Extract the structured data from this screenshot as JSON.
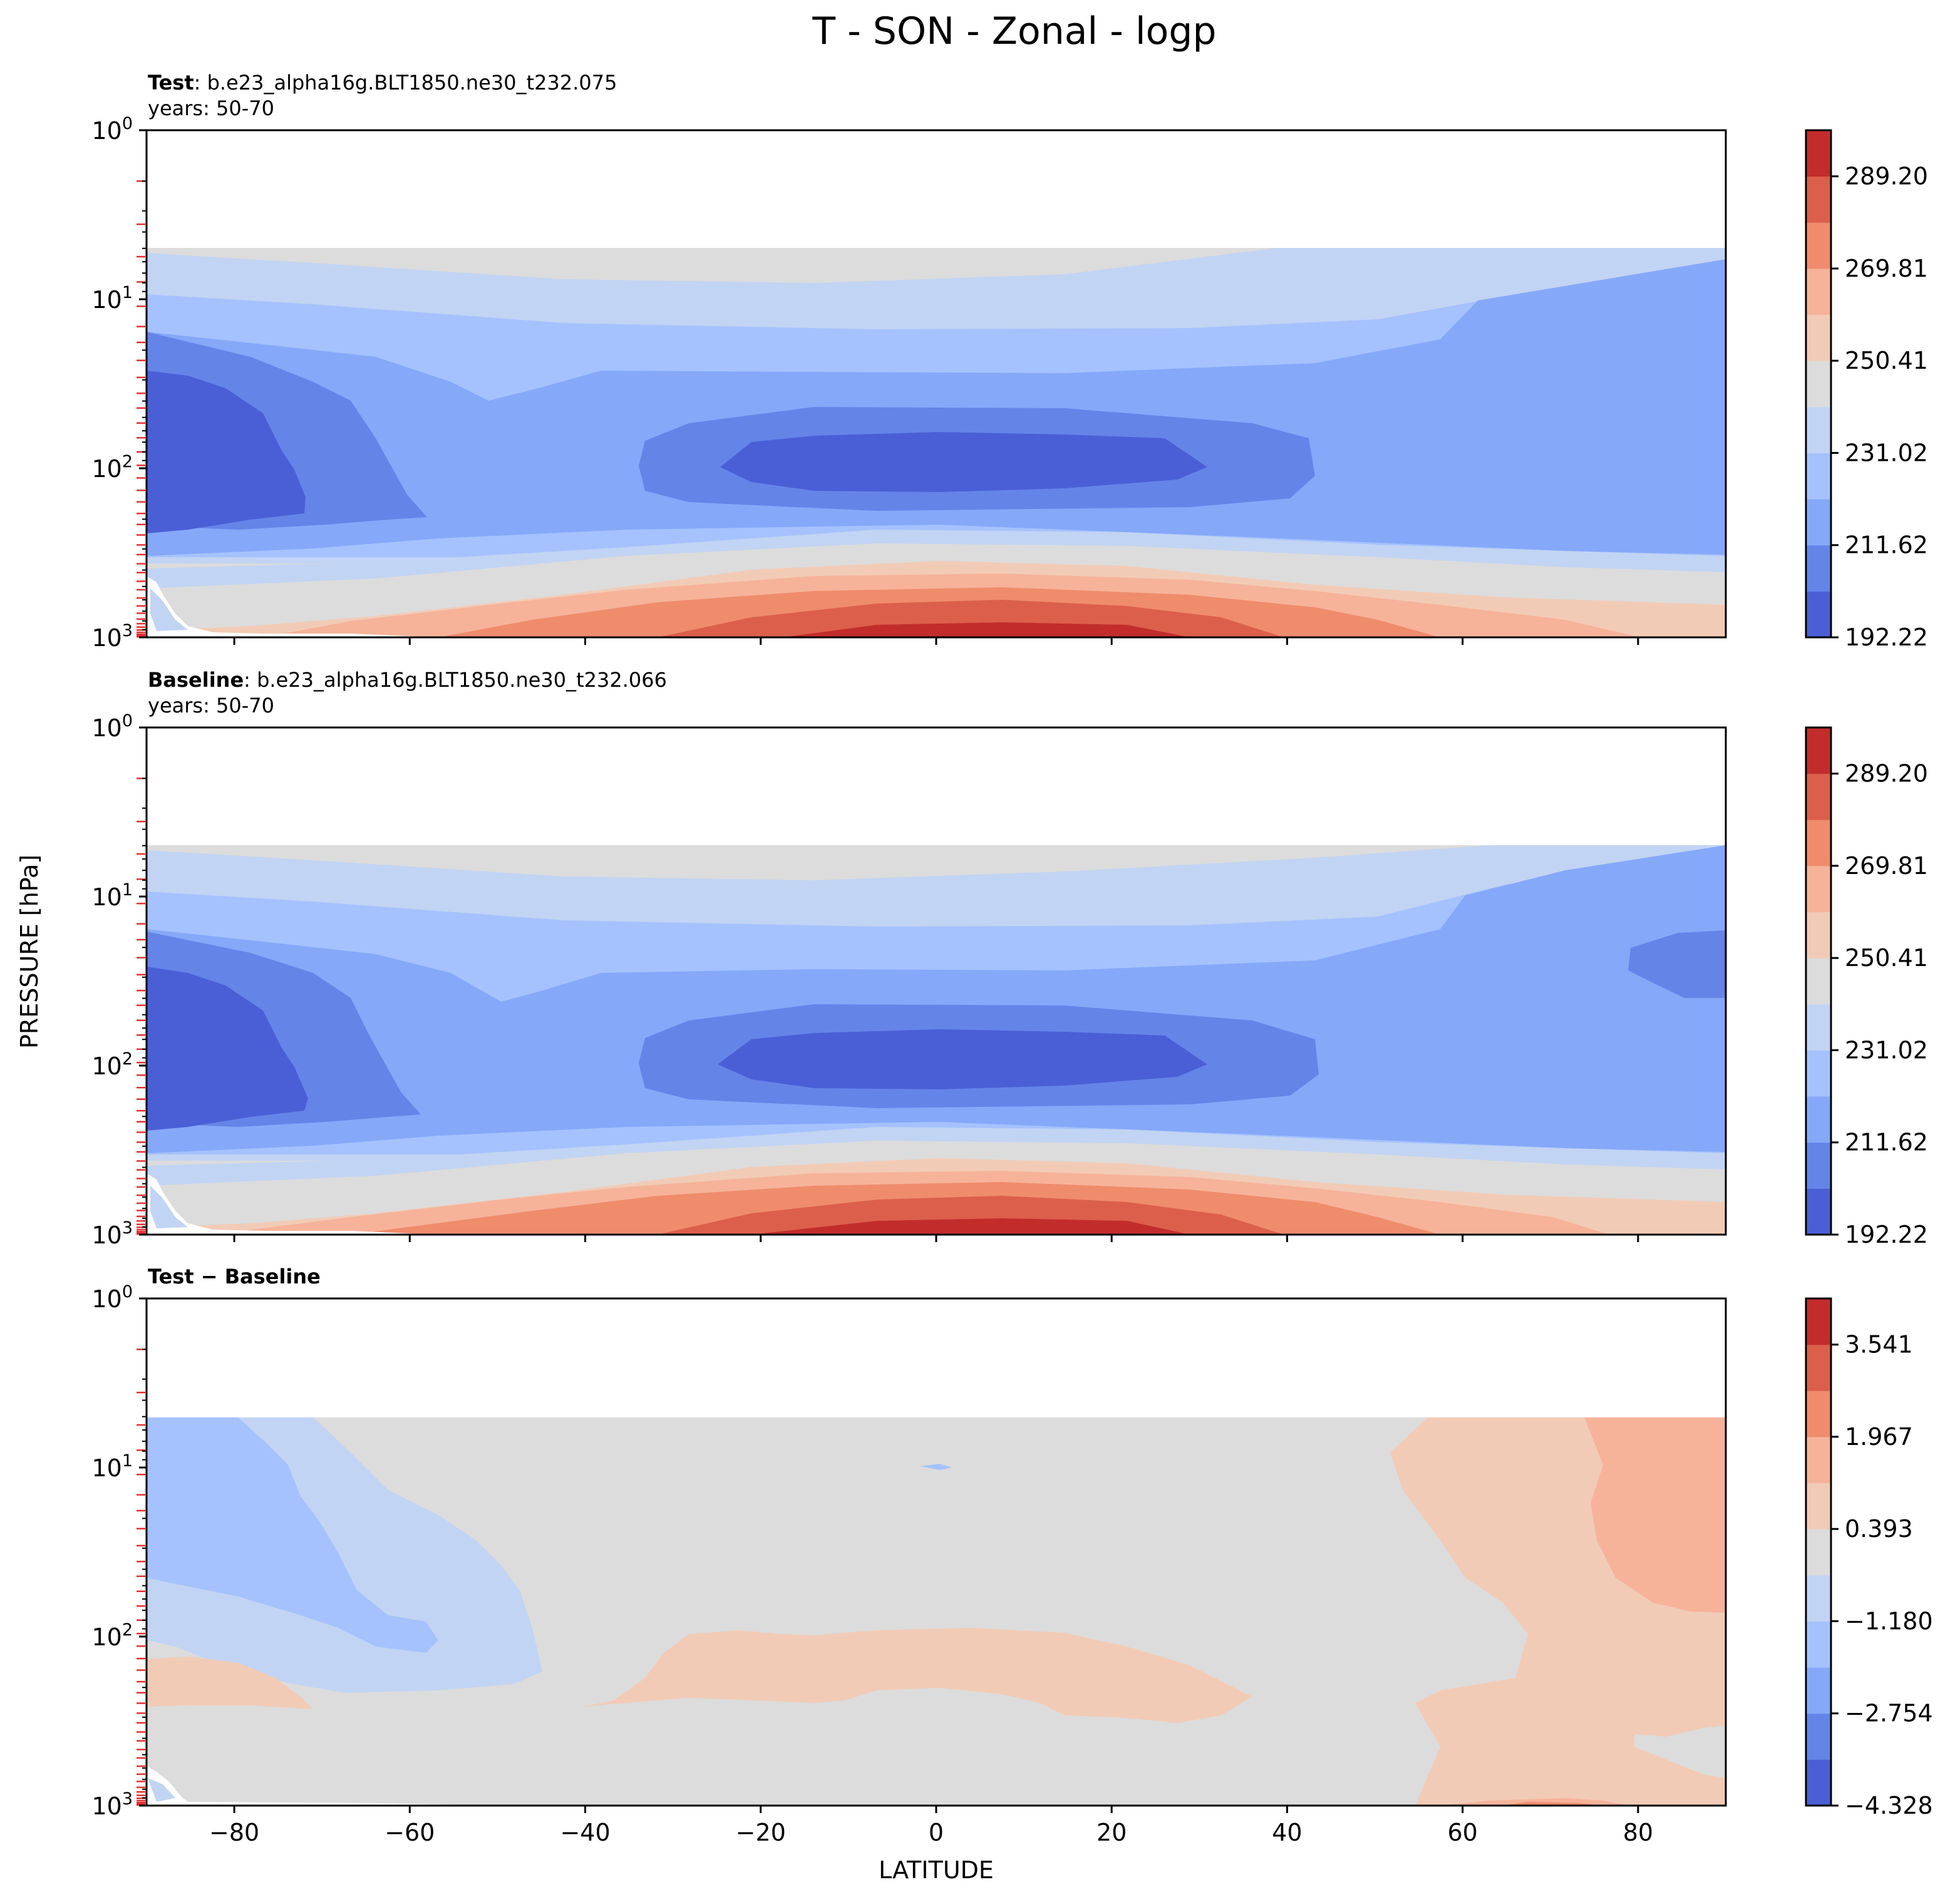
{
  "figure": {
    "title": "T - SON - Zonal - logp",
    "ylabel": "PRESSURE [hPa]",
    "xlabel": "LATITUDE"
  },
  "chart_data": [
    {
      "type": "heatmap",
      "panel": "test",
      "label_bold": "Test",
      "label_rest": ": b.e23_alpha16g.BLT1850.ne30_t232.075",
      "subtitle": "years: 50-70",
      "xlim": [
        -90,
        90
      ],
      "ylim": [
        1000,
        1
      ],
      "y_scale": "log",
      "xticks": [
        "−80",
        "−60",
        "−40",
        "−20",
        "0",
        "20",
        "40",
        "60",
        "80"
      ],
      "yticks": [
        [
          "10",
          "0"
        ],
        [
          "10",
          "1"
        ],
        [
          "10",
          "2"
        ],
        [
          "10",
          "3"
        ]
      ],
      "colorbar": {
        "ticks": [
          "192.22",
          "211.62",
          "231.02",
          "250.41",
          "269.81",
          "289.20"
        ],
        "range": [
          192.22,
          299.0
        ],
        "levels": 11
      }
    },
    {
      "type": "heatmap",
      "panel": "baseline",
      "label_bold": "Baseline",
      "label_rest": ": b.e23_alpha16g.BLT1850.ne30_t232.066",
      "subtitle": "years: 50-70",
      "xlim": [
        -90,
        90
      ],
      "ylim": [
        1000,
        1
      ],
      "y_scale": "log",
      "xticks": [
        "−80",
        "−60",
        "−40",
        "−20",
        "0",
        "20",
        "40",
        "60",
        "80"
      ],
      "yticks": [
        [
          "10",
          "0"
        ],
        [
          "10",
          "1"
        ],
        [
          "10",
          "2"
        ],
        [
          "10",
          "3"
        ]
      ],
      "colorbar": {
        "ticks": [
          "192.22",
          "211.62",
          "231.02",
          "250.41",
          "269.81",
          "289.20"
        ],
        "range": [
          192.22,
          299.0
        ],
        "levels": 11
      }
    },
    {
      "type": "heatmap",
      "panel": "difference",
      "label_bold": "Test − Baseline",
      "label_rest": "",
      "subtitle": "",
      "xlim": [
        -90,
        90
      ],
      "ylim": [
        1000,
        1
      ],
      "y_scale": "log",
      "xticks": [
        "−80",
        "−60",
        "−40",
        "−20",
        "0",
        "20",
        "40",
        "60",
        "80"
      ],
      "yticks": [
        [
          "10",
          "0"
        ],
        [
          "10",
          "1"
        ],
        [
          "10",
          "2"
        ],
        [
          "10",
          "3"
        ]
      ],
      "colorbar": {
        "ticks": [
          "−4.328",
          "−2.754",
          "−1.180",
          "0.393",
          "1.967",
          "3.541"
        ],
        "range": [
          -4.328,
          4.2
        ],
        "levels": 11
      }
    }
  ],
  "colormap": [
    "#4a5fd6",
    "#6584e8",
    "#85a8f9",
    "#a5c2fe",
    "#c2d4f3",
    "#dcdcdc",
    "#f2cbb6",
    "#f6b39a",
    "#ef8c6c",
    "#dc5f4b",
    "#c22d2c"
  ]
}
